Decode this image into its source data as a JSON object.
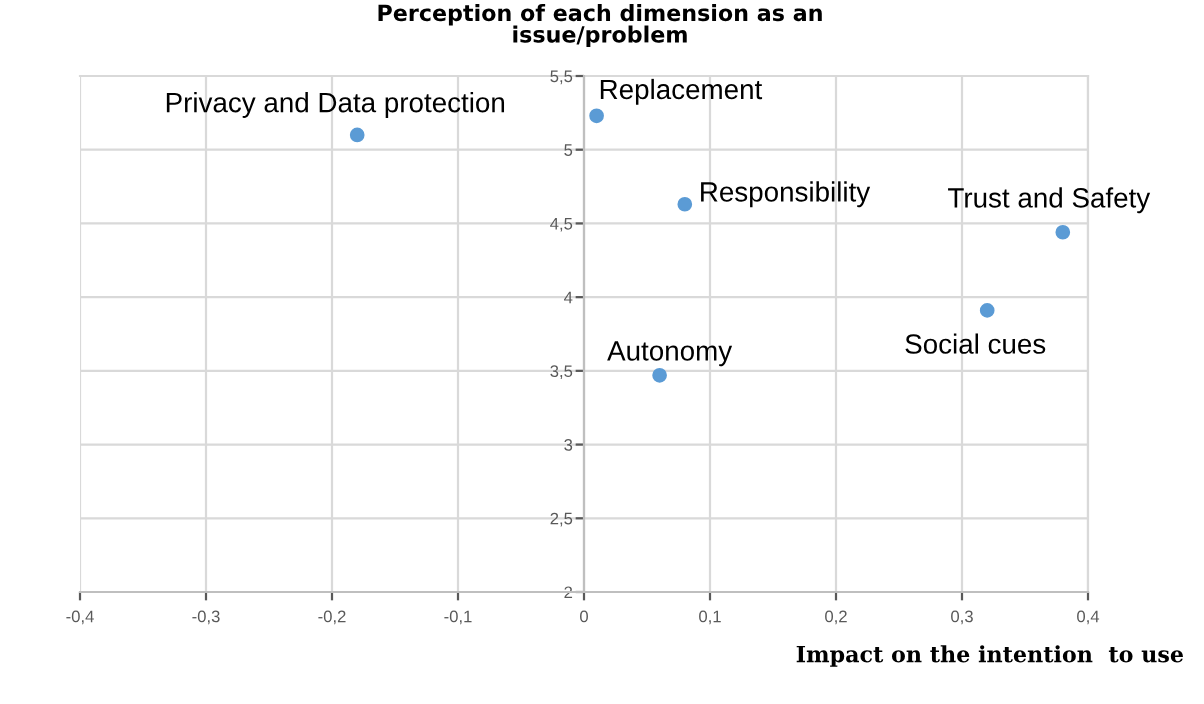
{
  "chart_data": {
    "type": "scatter",
    "title": "Perception of each dimension as an\nissue/problem",
    "xlabel": "Impact on the intention  to use",
    "x": [
      -0.18,
      0.01,
      0.08,
      0.38,
      0.32,
      0.06
    ],
    "series": [
      {
        "color": "#5b9bd5",
        "values": [
          5.1,
          5.23,
          4.63,
          4.44,
          3.91,
          3.47
        ]
      }
    ],
    "annotations": [
      {
        "text": "Privacy and Data protection",
        "x": -0.18,
        "y": 5.1
      },
      {
        "text": "Replacement",
        "x": 0.01,
        "y": 5.23
      },
      {
        "text": "Responsibility",
        "x": 0.08,
        "y": 4.63
      },
      {
        "text": "Trust and Safety",
        "x": 0.38,
        "y": 4.44
      },
      {
        "text": "Social cues",
        "x": 0.32,
        "y": 3.91
      },
      {
        "text": "Autonomy",
        "x": 0.06,
        "y": 3.47
      }
    ],
    "xlim": [
      -0.4,
      0.4
    ],
    "ylim": [
      2,
      5.5
    ],
    "xticks": [
      {
        "value": -0.4,
        "label": "-0,4"
      },
      {
        "value": -0.3,
        "label": "-0,3"
      },
      {
        "value": -0.2,
        "label": "-0,2"
      },
      {
        "value": -0.1,
        "label": "-0,1"
      },
      0,
      {
        "value": 0.1,
        "label": "0,1"
      },
      {
        "value": 0.2,
        "label": "0,2"
      },
      {
        "value": 0.3,
        "label": "0,3"
      },
      {
        "value": 0.4,
        "label": "0,4"
      }
    ],
    "yticks": [
      2,
      {
        "value": 2.5,
        "label": "2,5"
      },
      3,
      {
        "value": 3.5,
        "label": "3,5"
      },
      4,
      {
        "value": 4.5,
        "label": "4,5"
      },
      5,
      {
        "value": 5.5,
        "label": "5,5"
      }
    ],
    "grid": true,
    "marker": "circle",
    "legend": false
  }
}
